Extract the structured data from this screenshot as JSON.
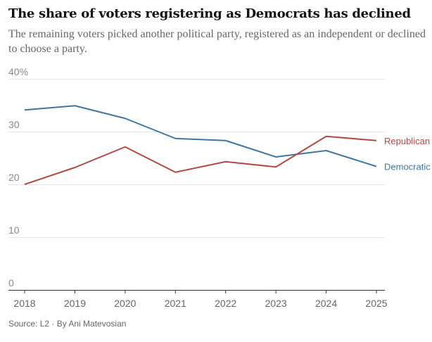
{
  "chart_data": {
    "type": "line",
    "title": "The share of voters registering as Democrats has declined",
    "subtitle": "The remaining voters picked another political party, registered as an independent or declined to choose a party.",
    "x": [
      "2018",
      "2019",
      "2020",
      "2021",
      "2022",
      "2023",
      "2024",
      "2025"
    ],
    "series": [
      {
        "name": "Democratic",
        "color": "#3f76a1",
        "values": [
          34.1,
          34.9,
          32.5,
          28.7,
          28.3,
          25.2,
          26.4,
          23.4
        ]
      },
      {
        "name": "Republican",
        "color": "#b04a45",
        "values": [
          20.0,
          23.2,
          27.1,
          22.3,
          24.3,
          23.3,
          29.1,
          28.3
        ]
      }
    ],
    "ylim": [
      0,
      40
    ],
    "yticks": [
      {
        "value": 0,
        "label": "0"
      },
      {
        "value": 10,
        "label": "10"
      },
      {
        "value": 20,
        "label": "20"
      },
      {
        "value": 30,
        "label": "30"
      },
      {
        "value": 40,
        "label": "40%"
      }
    ],
    "grid": true,
    "legend": "inline-right",
    "source": "Source: L2 · By Ani Matevosian"
  }
}
